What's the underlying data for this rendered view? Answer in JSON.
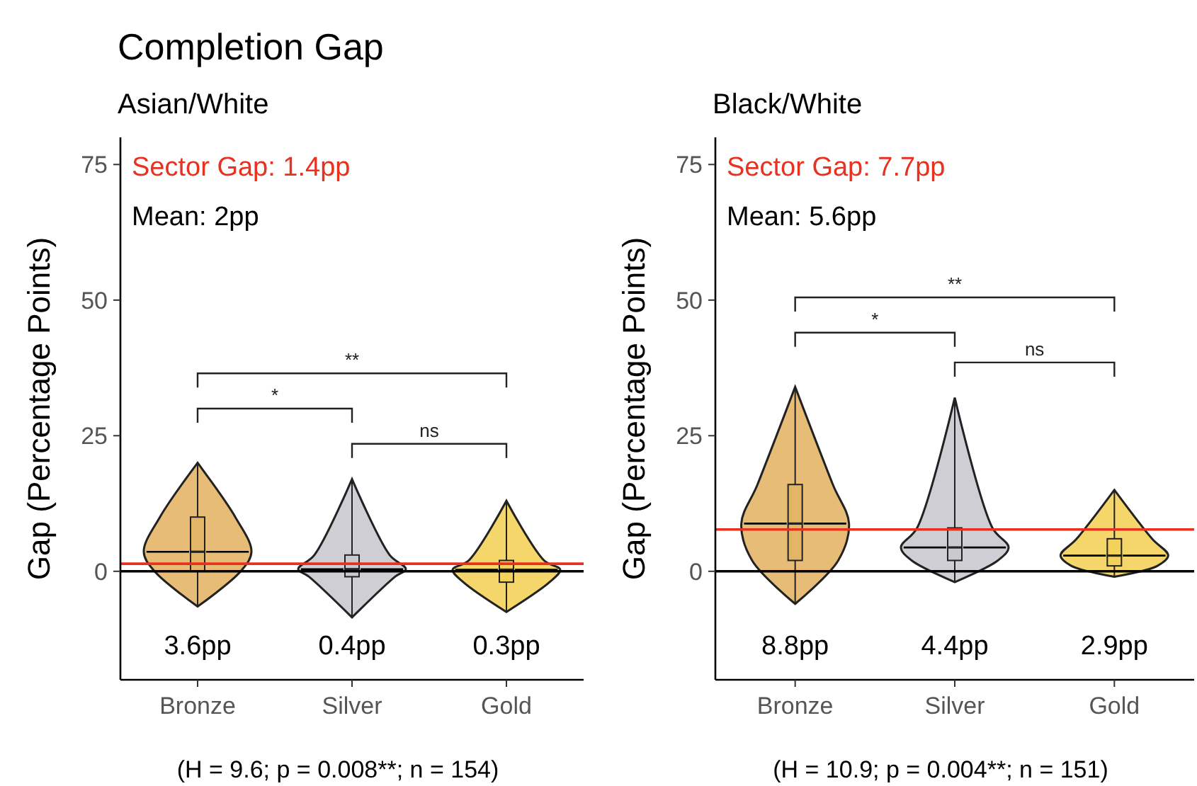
{
  "chart_data": [
    {
      "type": "box",
      "title": "Completion Gap",
      "subtitle": "Asian/White",
      "ylabel": "Gap (Percentage Points)",
      "categories": [
        "Bronze",
        "Silver",
        "Gold"
      ],
      "colors": [
        "#e3b567",
        "#c9c9cf",
        "#f4d15b"
      ],
      "boxes": [
        {
          "low": -6.5,
          "q1": 0,
          "median": 3.6,
          "q3": 10,
          "high": 20
        },
        {
          "low": -8.5,
          "q1": -1,
          "median": 0.4,
          "q3": 3,
          "high": 17
        },
        {
          "low": -7.5,
          "q1": -2,
          "median": 0.3,
          "q3": 2,
          "high": 13
        }
      ],
      "ylim": [
        -20,
        80
      ],
      "yticks": [
        0,
        25,
        50,
        75
      ],
      "ref_lines": [
        {
          "axis": "y",
          "value": 0,
          "color": "#000000"
        },
        {
          "axis": "y",
          "value": 1.4,
          "label": "Sector Gap: 1.4pp",
          "color": "#e8311f"
        }
      ],
      "annotations": [
        "Mean: 2pp",
        "*",
        "ns",
        "**",
        "3.6pp",
        "0.4pp",
        "0.3pp",
        "(H = 9.6; p = 0.008**; n = 154)"
      ]
    },
    {
      "type": "box",
      "subtitle": "Black/White",
      "ylabel": "Gap (Percentage Points)",
      "categories": [
        "Bronze",
        "Silver",
        "Gold"
      ],
      "colors": [
        "#e3b567",
        "#c9c9cf",
        "#f4d15b"
      ],
      "boxes": [
        {
          "low": -6,
          "q1": 2,
          "median": 8.8,
          "q3": 16,
          "high": 34
        },
        {
          "low": -2,
          "q1": 2,
          "median": 4.4,
          "q3": 8,
          "high": 32
        },
        {
          "low": -1,
          "q1": 1,
          "median": 2.9,
          "q3": 6,
          "high": 15
        }
      ],
      "ylim": [
        -20,
        80
      ],
      "yticks": [
        0,
        25,
        50,
        75
      ],
      "ref_lines": [
        {
          "axis": "y",
          "value": 0,
          "color": "#000000"
        },
        {
          "axis": "y",
          "value": 7.7,
          "label": "Sector Gap: 7.7pp",
          "color": "#e8311f"
        }
      ],
      "annotations": [
        "Mean: 5.6pp",
        "*",
        "ns",
        "**",
        "8.8pp",
        "4.4pp",
        "2.9pp",
        "(H = 10.9; p = 0.004**; n = 151)"
      ]
    }
  ]
}
